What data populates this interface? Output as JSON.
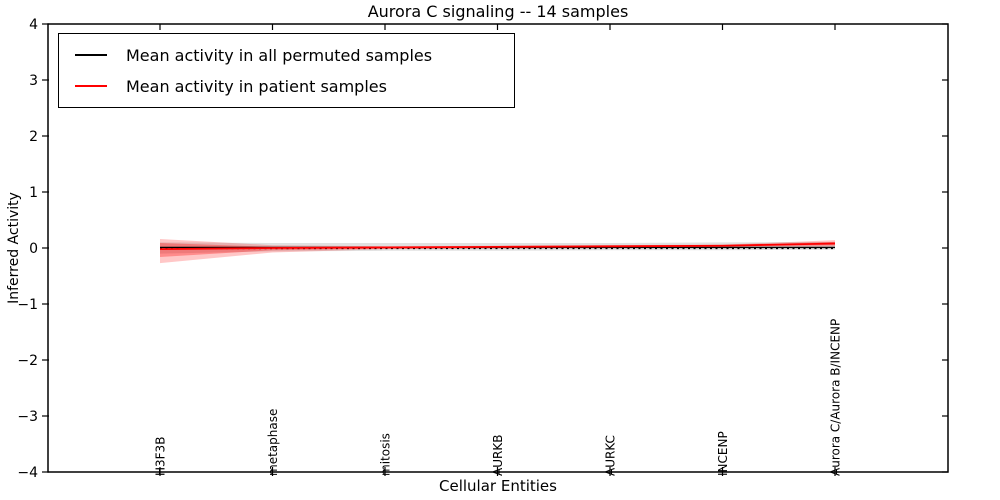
{
  "chart_data": {
    "type": "line",
    "title": "Aurora C signaling -- 14 samples",
    "xlabel": "Cellular Entities",
    "ylabel": "Inferred Activity",
    "ylim": [
      -4,
      4
    ],
    "yticks": [
      4,
      3,
      2,
      1,
      0,
      -1,
      -2,
      -3,
      -4
    ],
    "grid": false,
    "x_tick_rotation": 90,
    "categories": [
      "H3F3B",
      "metaphase",
      "mitosis",
      "AURKB",
      "AURKC",
      "INCENP",
      "Aurora C/Aurora B/INCENP"
    ],
    "zero_line": {
      "y": 0,
      "style": "dotted",
      "color": "#000000"
    },
    "legend": {
      "position": "upper left",
      "entries": [
        "Mean activity in all permuted samples",
        "Mean activity in patient samples"
      ]
    },
    "series": [
      {
        "name": "Mean activity in all permuted samples",
        "color": "#000000",
        "values": [
          0.01,
          0.01,
          0.01,
          0.01,
          0.01,
          0.01,
          0.01
        ],
        "band_upper": [
          0.1,
          0.09,
          0.09,
          0.09,
          0.09,
          0.1,
          0.11
        ],
        "band_lower": [
          -0.1,
          -0.06,
          -0.05,
          -0.05,
          -0.04,
          -0.04,
          -0.03
        ],
        "band_color": "#000000",
        "band_alpha": 0.12
      },
      {
        "name": "Mean activity in patient samples",
        "color": "#ff0000",
        "values": [
          -0.02,
          0.0,
          0.01,
          0.02,
          0.03,
          0.04,
          0.08
        ],
        "band_upper": [
          0.16,
          0.05,
          0.03,
          0.04,
          0.05,
          0.06,
          0.14
        ],
        "band_lower": [
          -0.27,
          -0.08,
          -0.02,
          -0.01,
          0.01,
          0.02,
          0.03
        ],
        "inner_band_upper": [
          0.09,
          0.02,
          0.02,
          0.03,
          0.04,
          0.05,
          0.11
        ],
        "inner_band_lower": [
          -0.16,
          -0.04,
          -0.01,
          0.0,
          0.01,
          0.03,
          0.05
        ],
        "band_color": "#ff0000",
        "band_alpha": 0.22,
        "inner_band_alpha": 0.3
      }
    ]
  }
}
